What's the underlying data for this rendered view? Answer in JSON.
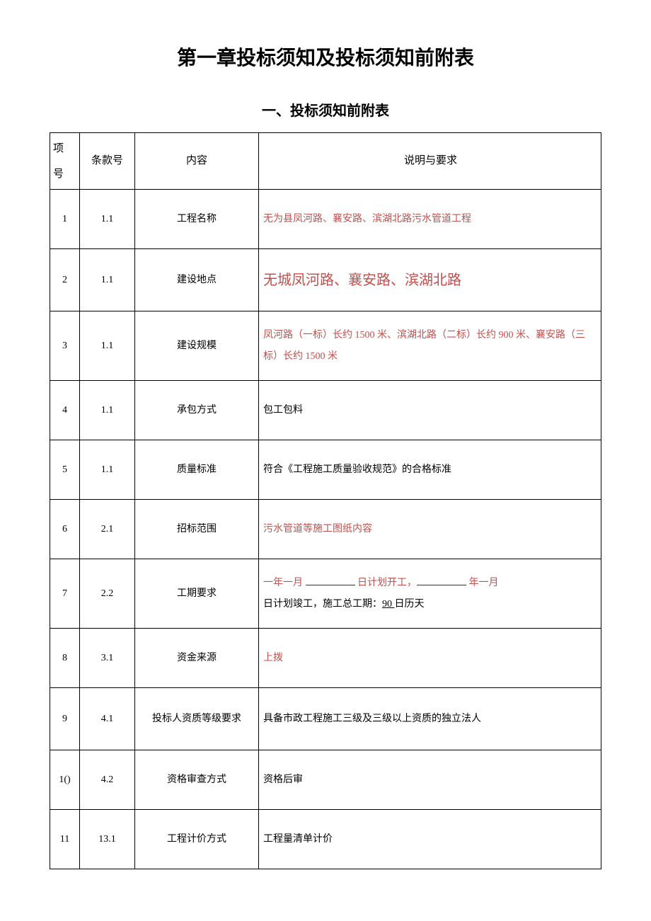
{
  "chapter_title": "第一章投标须知及投标须知前附表",
  "section_title": "一、投标须知前附表",
  "header": {
    "col_idx_line1": "项",
    "col_idx_line2": "号",
    "col_clause": "条款号",
    "col_content": "内容",
    "col_req": "说明与要求"
  },
  "rows": [
    {
      "idx": "1",
      "clause": "1.1",
      "content": "工程名称",
      "req_html": "<span class='red'>无为县凤河路、襄安路、滨湖北路污水管道工程</span>"
    },
    {
      "idx": "2",
      "clause": "1.1",
      "content": "建设地点",
      "req_html": "<span class='big-red'>无城凤河路、襄安路、滨湖北路</span>"
    },
    {
      "idx": "3",
      "clause": "1.1",
      "content": "建设规模",
      "req_html": "<span class='red'>凤河路（一标）长约 1500 米、滨湖北路（二标）长约 900 米、襄安路（三标）长约 1500 米</span>"
    },
    {
      "idx": "4",
      "clause": "1.1",
      "content": "承包方式",
      "req_html": "包工包料"
    },
    {
      "idx": "5",
      "clause": "1.1",
      "content": "质量标准",
      "req_html": "符合《工程施工质量验收规范》的合格标准"
    },
    {
      "idx": "6",
      "clause": "2.1",
      "content": "招标范围",
      "req_html": "<span class='red'>污水管道等施工图纸内容</span>"
    },
    {
      "idx": "7",
      "clause": "2.2",
      "content": "工期要求",
      "req_html": "<span class='red'>一年一月 <span class='underline-blank'></span> 日计划开工，<span class='underline-blank'></span> 年一月</span><br>日计划竣工，施工总工期：<span class='u'>90 </span>日历天"
    },
    {
      "idx": "8",
      "clause": "3.1",
      "content": "资金来源",
      "req_html": "<span class='red'>上拨</span>"
    },
    {
      "idx": "9",
      "clause": "4.1",
      "content": "投标人资质等级要求",
      "req_html": "具备市政工程施工三级及三级以上资质的独立法人"
    },
    {
      "idx": "1()",
      "clause": "4.2",
      "content": "资格审查方式",
      "req_html": "资格后审"
    },
    {
      "idx": "11",
      "clause": "13.1",
      "content": "工程计价方式",
      "req_html": "工程量清单计价"
    }
  ],
  "row_classes": [
    "",
    "r2",
    "r3",
    "",
    "",
    "",
    "r7",
    "",
    "r9",
    "",
    ""
  ]
}
